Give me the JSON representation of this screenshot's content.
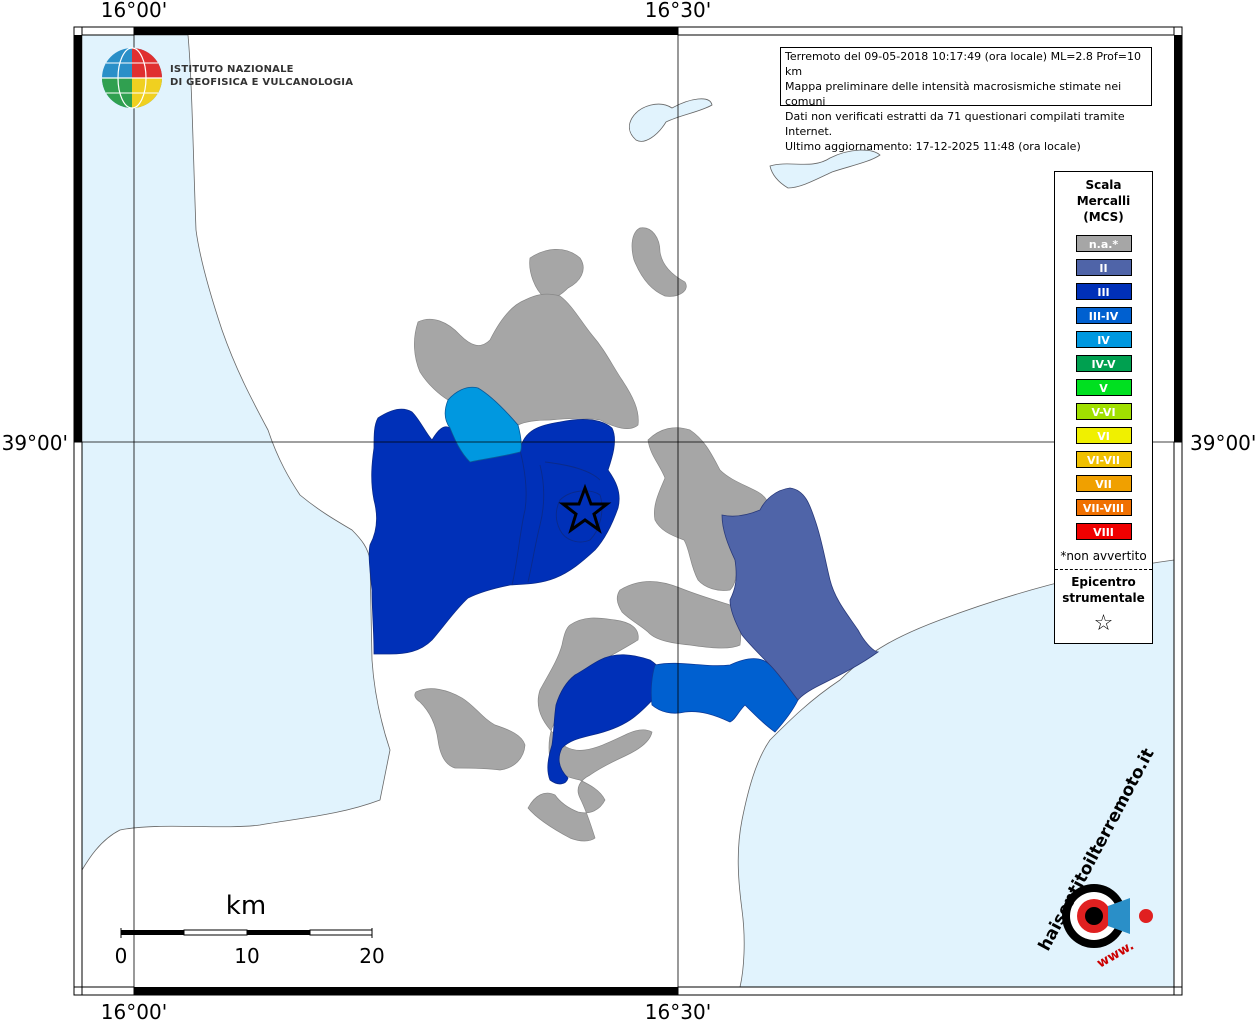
{
  "axes": {
    "top_left": "16°00'",
    "top_right": "16°30'",
    "bottom_left": "16°00'",
    "bottom_right": "16°30'",
    "left_lat": "39°00'",
    "right_lat": "39°00'"
  },
  "logo": {
    "line1": "ISTITUTO NAZIONALE",
    "line2": "DI GEOFISICA E VULCANOLOGIA"
  },
  "info": {
    "line1": "Terremoto del 09-05-2018 10:17:49 (ora locale) ML=2.8 Prof=10 km",
    "line2": "Mappa preliminare delle intensità macrosismiche stimate nei comuni",
    "line3": "Dati non verificati estratti da 71 questionari compilati tramite Internet.",
    "line4": "Ultimo aggiornamento: 17-12-2025 11:48 (ora locale)"
  },
  "legend": {
    "title1": "Scala",
    "title2": "Mercalli",
    "title3": "(MCS)",
    "items": [
      {
        "label": "n.a.*",
        "color": "#a6a6a6"
      },
      {
        "label": "II",
        "color": "#4f64a8"
      },
      {
        "label": "III",
        "color": "#0030b8"
      },
      {
        "label": "III-IV",
        "color": "#0060d0"
      },
      {
        "label": "IV",
        "color": "#0098e0"
      },
      {
        "label": "IV-V",
        "color": "#00a050"
      },
      {
        "label": "V",
        "color": "#00e020"
      },
      {
        "label": "V-VI",
        "color": "#a0e000"
      },
      {
        "label": "VI",
        "color": "#f0f000"
      },
      {
        "label": "VI-VII",
        "color": "#f0c000"
      },
      {
        "label": "VII",
        "color": "#f0a000"
      },
      {
        "label": "VII-VIII",
        "color": "#f07000"
      },
      {
        "label": "VIII",
        "color": "#f00000"
      }
    ],
    "note": "*non avvertito",
    "epi1": "Epicentro",
    "epi2": "strumentale",
    "star": "☆"
  },
  "scale": {
    "unit": "km",
    "label0": "0",
    "label10": "10",
    "label20": "20"
  },
  "brand": {
    "text": "haisentitoilterremoto.it",
    "www": "www."
  },
  "colors": {
    "sea": "#e1f3fd",
    "land": "#ffffff",
    "na": "#a6a6a6",
    "II": "#4f64a8",
    "III": "#0030b8",
    "III_IV": "#0060d0",
    "IV": "#0098e0"
  }
}
